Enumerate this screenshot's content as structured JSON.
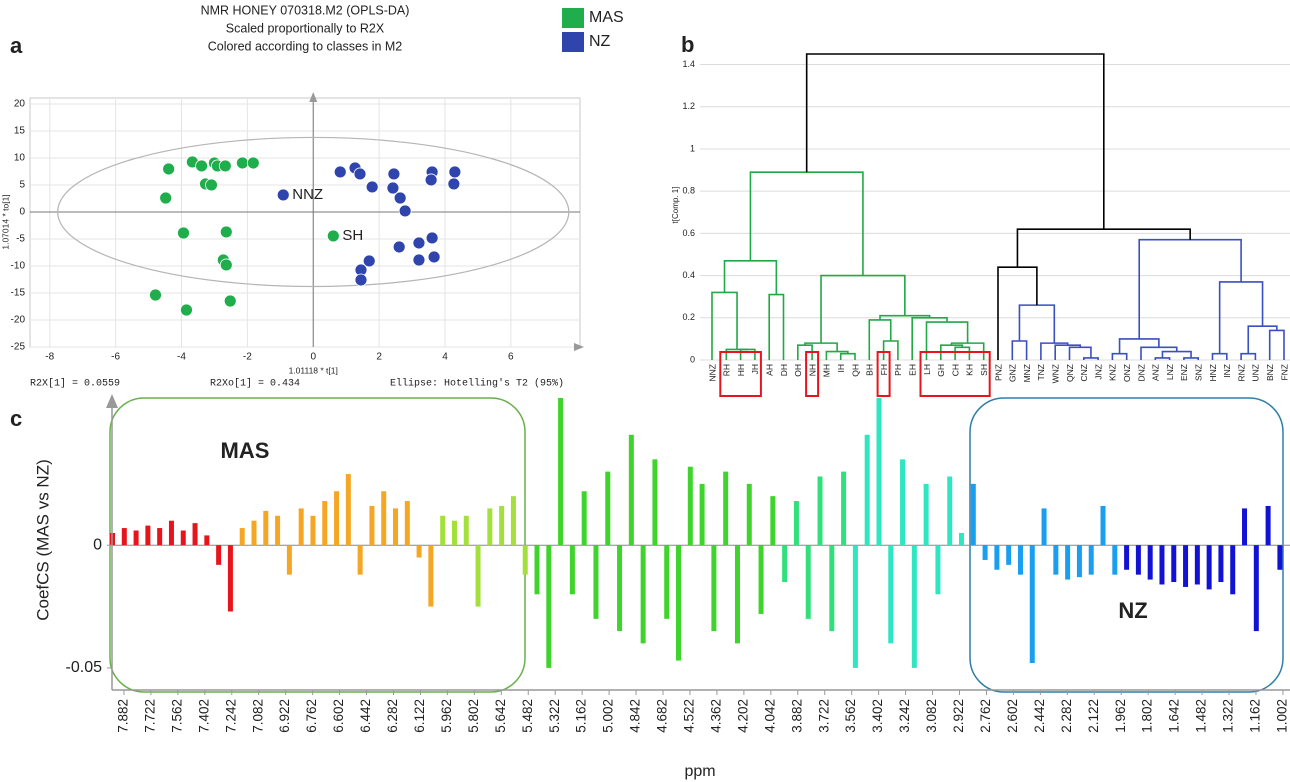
{
  "chart_data": [
    {
      "type": "scatter",
      "panel_label": "a",
      "title": [
        "NMR HONEY 070318.M2 (OPLS-DA)",
        "Scaled proportionally to R2X",
        "Colored according to classes in M2"
      ],
      "xlabel": "1.01118 * t[1]",
      "ylabel": "1.07014 * to[1]",
      "xlim": [
        -8.6,
        8.1
      ],
      "ylim": [
        -25,
        21.1
      ],
      "xticks": [
        -8,
        -6,
        -4,
        -2,
        0,
        2,
        4,
        6
      ],
      "yticks": [
        -25,
        -20,
        -15,
        -10,
        -5,
        0,
        5,
        10,
        15,
        20
      ],
      "grid": true,
      "ellipse_radii": [
        7.76,
        13.8
      ],
      "series": [
        {
          "name": "MAS",
          "color": "#1fae4b",
          "x": [
            0.61,
            -4.39,
            -4.48,
            -3.67,
            -3.39,
            -3.0,
            -2.91,
            -2.67,
            -2.15,
            -1.82,
            -3.27,
            -3.09,
            -3.94,
            -2.64,
            -2.73,
            -2.64,
            -2.52,
            -4.79,
            -3.85
          ],
          "y": [
            -4.44,
            7.96,
            2.59,
            9.26,
            8.52,
            9.07,
            8.52,
            8.52,
            9.07,
            9.07,
            5.19,
            5.0,
            -3.89,
            -3.7,
            -8.89,
            -9.81,
            -16.48,
            -15.37,
            -18.15
          ],
          "labels": [
            "SH",
            null,
            null,
            null,
            null,
            null,
            null,
            null,
            null,
            null,
            null,
            null,
            null,
            null,
            null,
            null,
            null,
            null,
            null
          ]
        },
        {
          "name": "NZ",
          "color": "#2f45ad",
          "x": [
            -0.91,
            0.82,
            1.27,
            1.42,
            1.79,
            2.45,
            2.42,
            2.64,
            2.79,
            3.61,
            3.58,
            4.3,
            4.27,
            1.7,
            1.45,
            1.45,
            2.61,
            3.21,
            3.61,
            3.21,
            3.67
          ],
          "y": [
            3.15,
            7.41,
            8.15,
            7.04,
            4.63,
            7.04,
            4.44,
            2.59,
            0.19,
            7.41,
            5.93,
            7.41,
            5.19,
            -9.07,
            -10.74,
            -12.59,
            -6.48,
            -5.74,
            -4.81,
            -8.89,
            -8.33
          ],
          "labels": [
            "NNZ",
            null,
            null,
            null,
            null,
            null,
            null,
            null,
            null,
            null,
            null,
            null,
            null,
            null,
            null,
            null,
            null,
            null,
            null,
            null,
            null
          ]
        }
      ],
      "footer": [
        "R2X[1] = 0.0559",
        "R2Xo[1] = 0.434",
        "Ellipse: Hotelling's T2 (95%)"
      ]
    },
    {
      "type": "dendrogram",
      "panel_label": "b",
      "ylabel": "t[Comp. 1]",
      "ylim": [
        0,
        1.54
      ],
      "yticks": [
        0,
        0.2,
        0.4,
        0.6,
        0.8,
        1,
        1.2,
        1.4
      ],
      "grid": true,
      "leaves": [
        "NNZ",
        "RH",
        "HH",
        "JH",
        "AH",
        "DH",
        "OH",
        "NH",
        "MH",
        "IH",
        "QH",
        "BH",
        "FH",
        "PH",
        "EH",
        "LH",
        "GH",
        "CH",
        "KH",
        "SH",
        "PNZ",
        "GNZ",
        "MNZ",
        "TNZ",
        "WNZ",
        "QNZ",
        "CNZ",
        "JNZ",
        "KNZ",
        "ONZ",
        "DNZ",
        "ANZ",
        "LNZ",
        "ENZ",
        "SNZ",
        "HNZ",
        "INZ",
        "RNZ",
        "UNZ",
        "BNZ",
        "FNZ"
      ],
      "leaf_colors": [
        "#22a845",
        "#22a845",
        "#22a845",
        "#22a845",
        "#22a845",
        "#22a845",
        "#22a845",
        "#22a845",
        "#22a845",
        "#22a845",
        "#22a845",
        "#22a845",
        "#22a845",
        "#22a845",
        "#22a845",
        "#22a845",
        "#22a845",
        "#22a845",
        "#22a845",
        "#22a845",
        "#000000",
        "#3a4fc0",
        "#3a4fc0",
        "#3a4fc0",
        "#3a4fc0",
        "#3a4fc0",
        "#3a4fc0",
        "#3a4fc0",
        "#3a4fc0",
        "#3a4fc0",
        "#3a4fc0",
        "#3a4fc0",
        "#3a4fc0",
        "#3a4fc0",
        "#3a4fc0",
        "#3a4fc0",
        "#3a4fc0",
        "#3a4fc0",
        "#3a4fc0",
        "#3a4fc0",
        "#3a4fc0"
      ],
      "linkage": [
        [
          2,
          3,
          0.05
        ],
        [
          1,
          41,
          0.05
        ],
        [
          0,
          42,
          0.32
        ],
        [
          4,
          5,
          0.31
        ],
        [
          43,
          44,
          0.47
        ],
        [
          6,
          7,
          0.07
        ],
        [
          9,
          10,
          0.03
        ],
        [
          8,
          47,
          0.04
        ],
        [
          46,
          48,
          0.08
        ],
        [
          12,
          13,
          0.09
        ],
        [
          11,
          50,
          0.19
        ],
        [
          17,
          18,
          0.06
        ],
        [
          16,
          52,
          0.07
        ],
        [
          19,
          53,
          0.08
        ],
        [
          15,
          54,
          0.18
        ],
        [
          14,
          55,
          0.2
        ],
        [
          51,
          56,
          0.21
        ],
        [
          49,
          57,
          0.4
        ],
        [
          45,
          58,
          0.89
        ],
        [
          26,
          27,
          0.01
        ],
        [
          25,
          60,
          0.06
        ],
        [
          24,
          61,
          0.07
        ],
        [
          23,
          62,
          0.08
        ],
        [
          21,
          22,
          0.09
        ],
        [
          64,
          63,
          0.26
        ],
        [
          20,
          65,
          0.44
        ],
        [
          28,
          29,
          0.03
        ],
        [
          31,
          32,
          0.01
        ],
        [
          33,
          34,
          0.01
        ],
        [
          68,
          69,
          0.04
        ],
        [
          30,
          70,
          0.06
        ],
        [
          67,
          71,
          0.1
        ],
        [
          35,
          36,
          0.03
        ],
        [
          37,
          38,
          0.03
        ],
        [
          39,
          40,
          0.14
        ],
        [
          74,
          75,
          0.16
        ],
        [
          73,
          76,
          0.37
        ],
        [
          72,
          77,
          0.57
        ],
        [
          66,
          78,
          0.62
        ],
        [
          59,
          79,
          1.45
        ]
      ],
      "highlight": [
        [
          1,
          3
        ],
        [
          7,
          7
        ],
        [
          12,
          12
        ],
        [
          15,
          19
        ]
      ],
      "highlight_color": "#e8141b"
    },
    {
      "type": "bar",
      "panel_label": "c",
      "ylabel": "CoefCS (MAS vs NZ)",
      "xlabel": "ppm",
      "xlim": [
        7.953,
        0.96
      ],
      "ylim": [
        -0.059,
        0.06
      ],
      "xticks": [
        7.882,
        7.722,
        7.562,
        7.402,
        7.242,
        7.082,
        6.922,
        6.762,
        6.602,
        6.442,
        6.282,
        6.122,
        5.962,
        5.802,
        5.642,
        5.482,
        5.322,
        5.162,
        5.002,
        4.842,
        4.682,
        4.522,
        4.362,
        4.202,
        4.042,
        3.882,
        3.722,
        3.562,
        3.402,
        3.242,
        3.082,
        2.922,
        2.762,
        2.602,
        2.442,
        2.282,
        2.122,
        1.962,
        1.802,
        1.642,
        1.482,
        1.322,
        1.162,
        1.002
      ],
      "yticks": [
        -0.05,
        0
      ],
      "x": [
        7.95,
        7.88,
        7.81,
        7.74,
        7.67,
        7.6,
        7.53,
        7.46,
        7.39,
        7.32,
        7.25,
        7.18,
        7.11,
        7.04,
        6.97,
        6.9,
        6.83,
        6.76,
        6.69,
        6.62,
        6.55,
        6.48,
        6.41,
        6.34,
        6.27,
        6.2,
        6.13,
        6.06,
        5.99,
        5.92,
        5.85,
        5.78,
        5.71,
        5.64,
        5.57,
        5.5,
        5.43,
        5.36,
        5.29,
        5.22,
        5.15,
        5.08,
        5.01,
        4.94,
        4.87,
        4.8,
        4.73,
        4.66,
        4.59,
        4.52,
        4.45,
        4.38,
        4.31,
        4.24,
        4.17,
        4.1,
        4.03,
        3.96,
        3.89,
        3.82,
        3.75,
        3.68,
        3.61,
        3.54,
        3.47,
        3.4,
        3.33,
        3.26,
        3.19,
        3.12,
        3.05,
        2.98,
        2.91,
        2.84,
        2.77,
        2.7,
        2.63,
        2.56,
        2.49,
        2.42,
        2.35,
        2.28,
        2.21,
        2.14,
        2.07,
        2.0,
        1.93,
        1.86,
        1.79,
        1.72,
        1.65,
        1.58,
        1.51,
        1.44,
        1.37,
        1.3,
        1.23,
        1.16,
        1.09,
        1.02
      ],
      "values": [
        0.005,
        0.007,
        0.006,
        0.008,
        0.007,
        0.01,
        0.006,
        0.009,
        0.004,
        -0.008,
        -0.027,
        0.007,
        0.01,
        0.014,
        0.012,
        -0.012,
        0.015,
        0.012,
        0.018,
        0.022,
        0.029,
        -0.012,
        0.016,
        0.022,
        0.015,
        0.018,
        -0.005,
        -0.025,
        0.012,
        0.01,
        0.012,
        -0.025,
        0.015,
        0.016,
        0.02,
        -0.012,
        -0.02,
        -0.05,
        0.06,
        -0.02,
        0.022,
        -0.03,
        0.03,
        -0.035,
        0.045,
        -0.04,
        0.035,
        -0.03,
        -0.047,
        0.032,
        0.025,
        -0.035,
        0.03,
        -0.04,
        0.025,
        -0.028,
        0.02,
        -0.015,
        0.018,
        -0.03,
        0.028,
        -0.035,
        0.03,
        -0.05,
        0.045,
        0.06,
        -0.04,
        0.035,
        -0.05,
        0.025,
        -0.02,
        0.028,
        0.005,
        0.025,
        -0.006,
        -0.01,
        -0.008,
        -0.012,
        -0.048,
        0.015,
        -0.012,
        -0.014,
        -0.013,
        -0.012,
        0.016,
        -0.012,
        -0.01,
        -0.012,
        -0.014,
        -0.016,
        -0.015,
        -0.017,
        -0.016,
        -0.018,
        -0.015,
        -0.02,
        0.015,
        -0.035,
        0.016,
        -0.01
      ],
      "color_bands": [
        {
          "from": 7.953,
          "to": 7.2,
          "color": "#e8141b"
        },
        {
          "from": 7.2,
          "to": 6.0,
          "color": "#f5a623"
        },
        {
          "from": 6.0,
          "to": 5.45,
          "color": "#a4e03c"
        },
        {
          "from": 5.45,
          "to": 4.0,
          "color": "#3fd42c"
        },
        {
          "from": 4.0,
          "to": 3.6,
          "color": "#30e07c"
        },
        {
          "from": 3.6,
          "to": 2.85,
          "color": "#2ee6c2"
        },
        {
          "from": 2.85,
          "to": 1.97,
          "color": "#1a9ff0"
        },
        {
          "from": 1.97,
          "to": 0.96,
          "color": "#1212d4"
        }
      ],
      "annotations": [
        "MAS",
        "NZ"
      ]
    }
  ]
}
